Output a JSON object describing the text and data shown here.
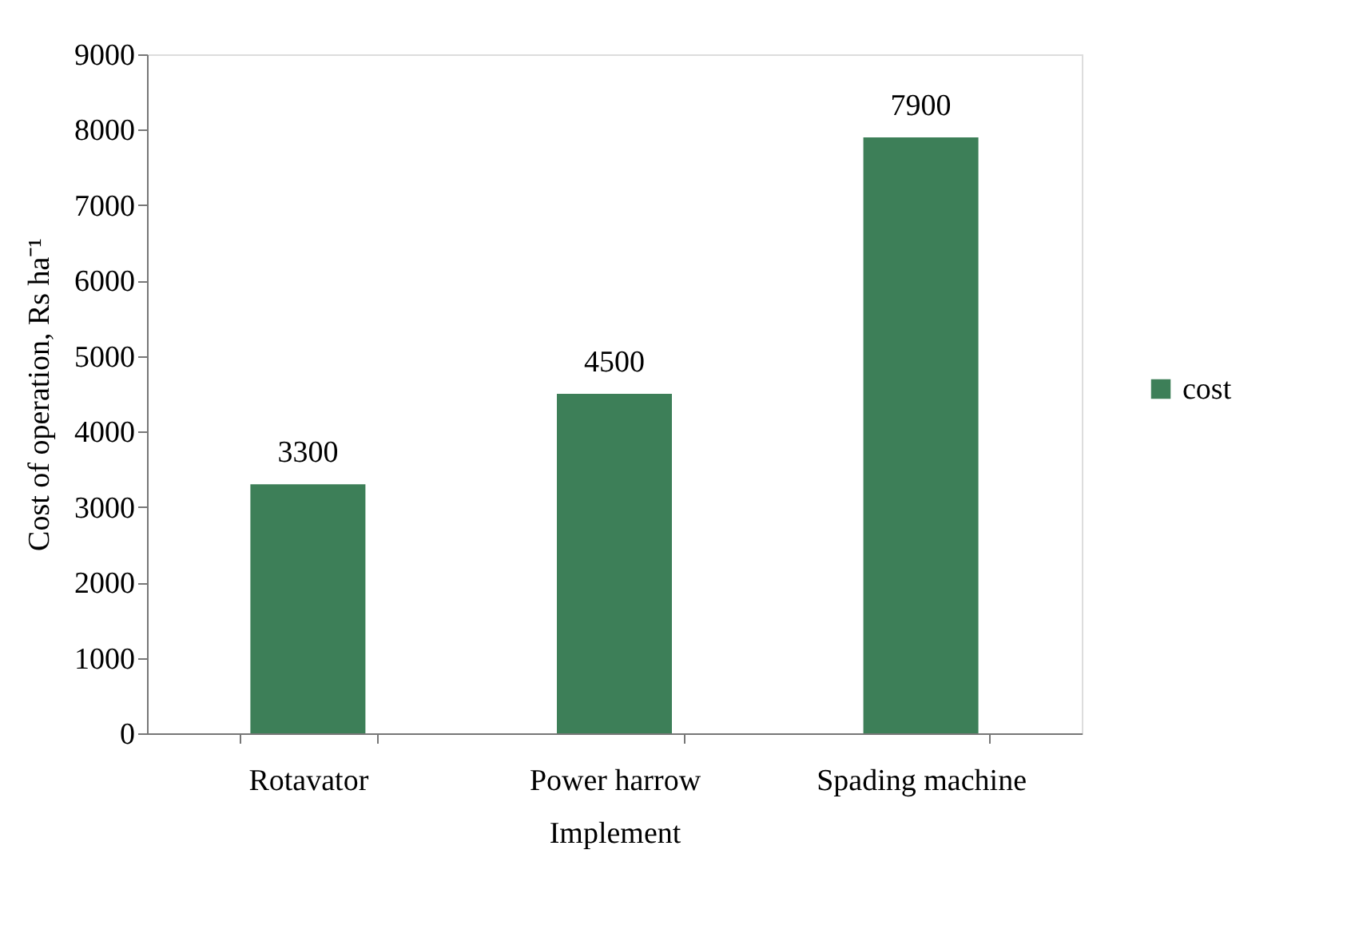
{
  "chart_data": {
    "type": "bar",
    "xlabel": "Implement",
    "ylabel": "Cost of operation, Rs ha⁻¹",
    "categories": [
      "Rotavator",
      "Power harrow",
      "Spading machine"
    ],
    "series": [
      {
        "name": "cost",
        "color": "#3d7f58",
        "values": [
          3300,
          4500,
          7900
        ]
      }
    ],
    "ylim": [
      0,
      9000
    ],
    "yticks": [
      0,
      1000,
      2000,
      3000,
      4000,
      5000,
      6000,
      7000,
      8000,
      9000
    ],
    "data_labels": true,
    "legend": "right",
    "grid": false
  }
}
